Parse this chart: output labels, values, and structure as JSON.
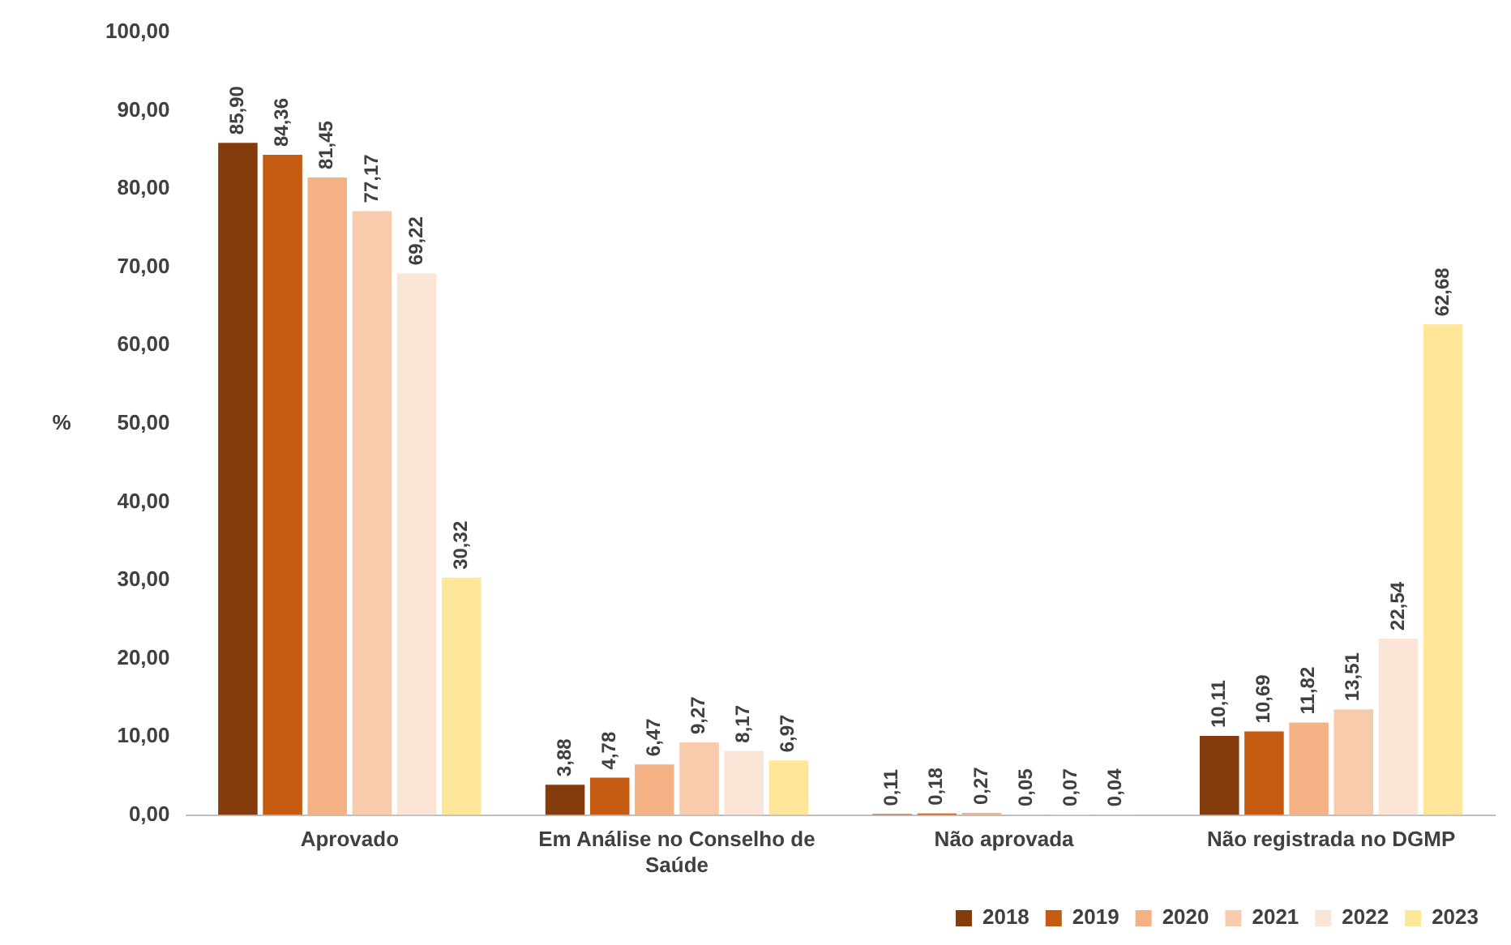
{
  "chart_data": {
    "type": "bar",
    "ylabel": "%",
    "categories": [
      "Aprovado",
      "Em Análise no Conselho de Saúde",
      "Não aprovada",
      "Não registrada no DGMP"
    ],
    "series": [
      {
        "name": "2018",
        "color": "#843c0c",
        "values": [
          85.9,
          3.88,
          0.11,
          10.11
        ],
        "value_labels": [
          "85,90",
          "3,88",
          "0,11",
          "10,11"
        ]
      },
      {
        "name": "2019",
        "color": "#c55a11",
        "values": [
          84.36,
          4.78,
          0.18,
          10.69
        ],
        "value_labels": [
          "84,36",
          "4,78",
          "0,18",
          "10,69"
        ]
      },
      {
        "name": "2020",
        "color": "#f4b183",
        "values": [
          81.45,
          6.47,
          0.27,
          11.82
        ],
        "value_labels": [
          "81,45",
          "6,47",
          "0,27",
          "11,82"
        ]
      },
      {
        "name": "2021",
        "color": "#f8cbad",
        "values": [
          77.17,
          9.27,
          0.05,
          13.51
        ],
        "value_labels": [
          "77,17",
          "9,27",
          "0,05",
          "13,51"
        ]
      },
      {
        "name": "2022",
        "color": "#fbe5d6",
        "values": [
          69.22,
          8.17,
          0.07,
          22.54
        ],
        "value_labels": [
          "69,22",
          "8,17",
          "0,07",
          "22,54"
        ]
      },
      {
        "name": "2023",
        "color": "#ffe699",
        "values": [
          30.32,
          6.97,
          0.04,
          62.68
        ],
        "value_labels": [
          "30,32",
          "6,97",
          "0,04",
          "62,68"
        ]
      }
    ],
    "ylim": [
      0,
      100
    ],
    "yticks": [
      {
        "value": 0,
        "label": "0,00"
      },
      {
        "value": 10,
        "label": "10,00"
      },
      {
        "value": 20,
        "label": "20,00"
      },
      {
        "value": 30,
        "label": "30,00"
      },
      {
        "value": 40,
        "label": "40,00"
      },
      {
        "value": 50,
        "label": "50,00"
      },
      {
        "value": 60,
        "label": "60,00"
      },
      {
        "value": 70,
        "label": "70,00"
      },
      {
        "value": 80,
        "label": "80,00"
      },
      {
        "value": 90,
        "label": "90,00"
      },
      {
        "value": 100,
        "label": "100,00"
      }
    ],
    "grid": false,
    "legend": "bottom right"
  }
}
